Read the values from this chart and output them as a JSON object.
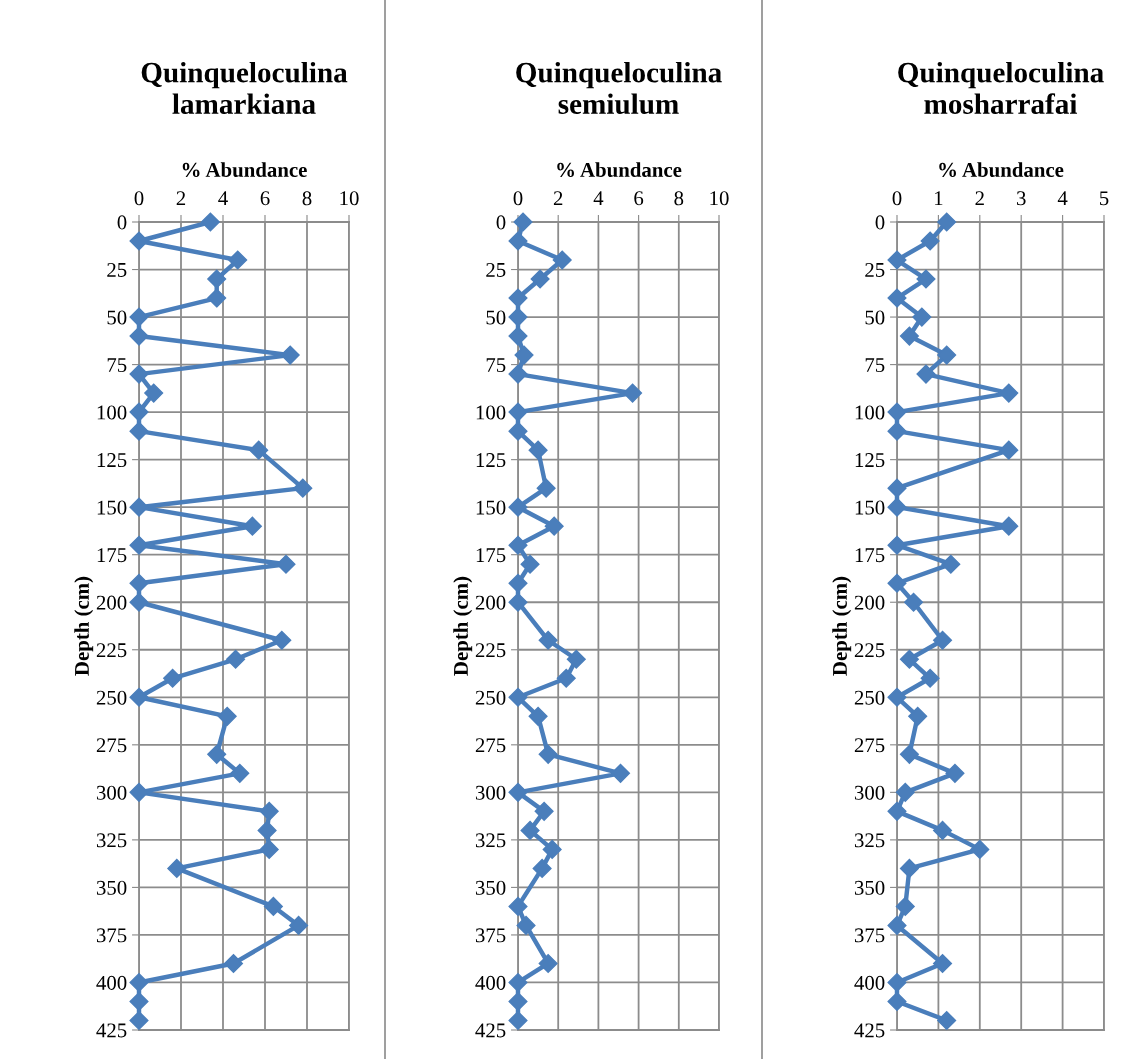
{
  "chart_data": [
    {
      "type": "line",
      "title": "Quinqueloculina\nlamarkiana",
      "xlabel": "% Abundance",
      "ylabel": "Depth (cm)",
      "xlim": [
        0,
        10
      ],
      "xticks": [
        0,
        2,
        4,
        6,
        8,
        10
      ],
      "ylim": [
        425,
        0
      ],
      "yticks": [
        0,
        25,
        50,
        75,
        100,
        125,
        150,
        175,
        200,
        225,
        250,
        275,
        300,
        325,
        350,
        375,
        400,
        425
      ],
      "grid": true,
      "marker": "diamond",
      "line_style": "solid",
      "series": [
        {
          "color": "#4a7ebb",
          "x": [
            3.4,
            0,
            4.7,
            3.7,
            3.7,
            0,
            0,
            7.2,
            0,
            0.7,
            0,
            0,
            5.7,
            7.8,
            0,
            5.4,
            0,
            7.0,
            0,
            0,
            6.8,
            4.6,
            1.6,
            0,
            4.2,
            3.7,
            4.8,
            0,
            6.2,
            6.1,
            6.2,
            1.8,
            6.4,
            7.6,
            4.5,
            0,
            0,
            0
          ],
          "values": [
            0,
            10,
            20,
            30,
            40,
            50,
            60,
            70,
            80,
            90,
            100,
            110,
            120,
            140,
            150,
            160,
            170,
            180,
            190,
            200,
            220,
            230,
            240,
            250,
            260,
            280,
            290,
            300,
            310,
            320,
            330,
            340,
            360,
            370,
            390,
            400,
            410,
            420
          ]
        }
      ]
    },
    {
      "type": "line",
      "title": "Quinqueloculina\nsemiulum",
      "xlabel": "% Abundance",
      "ylabel": "Depth (cm)",
      "xlim": [
        0,
        10
      ],
      "xticks": [
        0,
        2,
        4,
        6,
        8,
        10
      ],
      "ylim": [
        425,
        0
      ],
      "yticks": [
        0,
        25,
        50,
        75,
        100,
        125,
        150,
        175,
        200,
        225,
        250,
        275,
        300,
        325,
        350,
        375,
        400,
        425
      ],
      "grid": true,
      "marker": "diamond",
      "line_style": "solid",
      "series": [
        {
          "color": "#4a7ebb",
          "x": [
            0.25,
            0,
            2.2,
            1.1,
            0,
            0,
            0,
            0.3,
            0,
            5.7,
            0,
            0,
            1.0,
            1.4,
            0,
            1.8,
            0,
            0.6,
            0,
            0,
            1.5,
            2.9,
            2.4,
            0,
            1.0,
            1.5,
            5.1,
            0,
            1.3,
            0.6,
            1.7,
            1.2,
            0,
            0.4,
            1.5,
            0,
            0,
            0
          ],
          "values": [
            0,
            10,
            20,
            30,
            40,
            50,
            60,
            70,
            80,
            90,
            100,
            110,
            120,
            140,
            150,
            160,
            170,
            180,
            190,
            200,
            220,
            230,
            240,
            250,
            260,
            280,
            290,
            300,
            310,
            320,
            330,
            340,
            360,
            370,
            390,
            400,
            410,
            420
          ]
        }
      ]
    },
    {
      "type": "line",
      "title": "Quinqueloculina\nmosharrafai",
      "xlabel": "% Abundance",
      "ylabel": "Depth (cm)",
      "xlim": [
        0,
        5
      ],
      "xticks": [
        0,
        1,
        2,
        3,
        4,
        5
      ],
      "ylim": [
        425,
        0
      ],
      "yticks": [
        0,
        25,
        50,
        75,
        100,
        125,
        150,
        175,
        200,
        225,
        250,
        275,
        300,
        325,
        350,
        375,
        400,
        425
      ],
      "grid": true,
      "marker": "diamond",
      "line_style": "solid",
      "series": [
        {
          "color": "#4a7ebb",
          "x": [
            1.2,
            0.8,
            0,
            0.7,
            0,
            0.6,
            0.3,
            1.2,
            0.7,
            2.7,
            0,
            0,
            2.7,
            0,
            0,
            2.7,
            0,
            1.3,
            0,
            0.4,
            1.1,
            0.3,
            0.8,
            0,
            0.5,
            0.3,
            1.4,
            0.2,
            0,
            1.1,
            2.0,
            0.3,
            0.2,
            0,
            1.1,
            0,
            0,
            1.2
          ],
          "values": [
            0,
            10,
            20,
            30,
            40,
            50,
            60,
            70,
            80,
            90,
            100,
            110,
            120,
            140,
            150,
            160,
            170,
            180,
            190,
            200,
            220,
            230,
            240,
            250,
            260,
            280,
            290,
            300,
            310,
            320,
            330,
            340,
            360,
            370,
            390,
            400,
            410,
            420
          ]
        }
      ]
    }
  ]
}
